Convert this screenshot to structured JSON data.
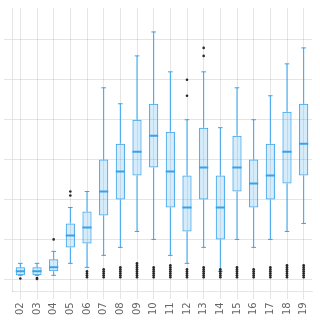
{
  "chart_data": {
    "type": "box",
    "categories": [
      "02",
      "03",
      "04",
      "05",
      "06",
      "07",
      "08",
      "09",
      "10",
      "11",
      "12",
      "13",
      "14",
      "15",
      "16",
      "17",
      "18",
      "19"
    ],
    "values": [
      {
        "med": 2,
        "q1": 1,
        "q3": 3,
        "whislo": 1,
        "whishi": 4,
        "fliers": [
          0.2
        ]
      },
      {
        "med": 2,
        "q1": 1,
        "q3": 3,
        "whislo": 1,
        "whishi": 4,
        "fliers": [
          0.1,
          0.3
        ]
      },
      {
        "med": 3,
        "q1": 2,
        "q3": 5,
        "whislo": 1,
        "whishi": 7,
        "fliers": [
          10
        ]
      },
      {
        "med": 11,
        "q1": 8,
        "q3": 14,
        "whislo": 4,
        "whishi": 18,
        "fliers": [
          21,
          22
        ]
      },
      {
        "med": 13,
        "q1": 9,
        "q3": 17,
        "whislo": 3,
        "whishi": 22,
        "fliers": [
          0.5,
          1,
          1.5,
          2
        ]
      },
      {
        "med": 22,
        "q1": 16,
        "q3": 30,
        "whislo": 6,
        "whishi": 48,
        "fliers": [
          0.5,
          1,
          1.5,
          2,
          2.5
        ]
      },
      {
        "med": 27,
        "q1": 20,
        "q3": 34,
        "whislo": 8,
        "whishi": 44,
        "fliers": [
          0.5,
          1,
          1.5,
          2,
          2.5,
          3
        ]
      },
      {
        "med": 32,
        "q1": 26,
        "q3": 40,
        "whislo": 12,
        "whishi": 56,
        "fliers": [
          0.5,
          1,
          1.5,
          2,
          2.5,
          3,
          3.5,
          4
        ]
      },
      {
        "med": 36,
        "q1": 28,
        "q3": 44,
        "whislo": 10,
        "whishi": 62,
        "fliers": [
          0.5,
          1,
          1.5,
          2,
          2.5,
          3
        ]
      },
      {
        "med": 27,
        "q1": 18,
        "q3": 37,
        "whislo": 6,
        "whishi": 52,
        "fliers": [
          0.5,
          1,
          1.5,
          2,
          2.5,
          3,
          3.5
        ]
      },
      {
        "med": 18,
        "q1": 12,
        "q3": 26,
        "whislo": 4,
        "whishi": 40,
        "fliers": [
          0.5,
          1,
          1.5,
          2,
          2.5,
          46,
          50
        ]
      },
      {
        "med": 28,
        "q1": 20,
        "q3": 38,
        "whislo": 8,
        "whishi": 52,
        "fliers": [
          0.5,
          1,
          1.5,
          2,
          2.5,
          3,
          56,
          58
        ]
      },
      {
        "med": 18,
        "q1": 10,
        "q3": 26,
        "whislo": 2,
        "whishi": 38,
        "fliers": [
          0.5,
          1,
          1.5,
          2,
          2.5
        ]
      },
      {
        "med": 28,
        "q1": 22,
        "q3": 36,
        "whislo": 10,
        "whishi": 48,
        "fliers": [
          0.5,
          1,
          1.5,
          2,
          2.5,
          3
        ]
      },
      {
        "med": 24,
        "q1": 18,
        "q3": 30,
        "whislo": 8,
        "whishi": 40,
        "fliers": [
          0.5,
          1,
          1.5,
          2,
          2.5
        ]
      },
      {
        "med": 26,
        "q1": 20,
        "q3": 34,
        "whislo": 10,
        "whishi": 46,
        "fliers": [
          0.5,
          1,
          1.5,
          2,
          2.5,
          3
        ]
      },
      {
        "med": 32,
        "q1": 24,
        "q3": 42,
        "whislo": 12,
        "whishi": 54,
        "fliers": [
          0.5,
          1,
          1.5,
          2,
          2.5,
          3,
          3.5
        ]
      },
      {
        "med": 34,
        "q1": 26,
        "q3": 44,
        "whislo": 14,
        "whishi": 58,
        "fliers": [
          0.5,
          1,
          1.5,
          2,
          2.5,
          3,
          3.5
        ]
      }
    ],
    "ylim": [
      -3,
      68
    ],
    "yticks": [
      0,
      10,
      20,
      30,
      40,
      50,
      60
    ],
    "grid": true,
    "tick_labels": "x"
  }
}
